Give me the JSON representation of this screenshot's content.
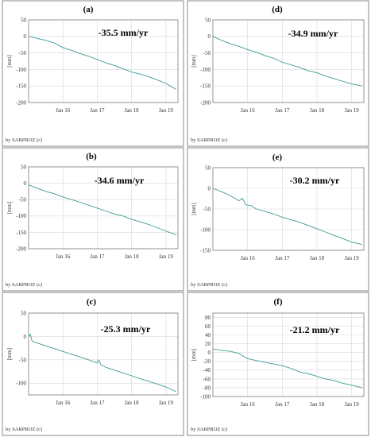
{
  "chart_data": [
    {
      "type": "line",
      "panel_label": "(a)",
      "annotation": "-35.5 mm/yr",
      "ylabel": "[mm]",
      "credit": "by SARPROZ (c)",
      "color": "#3a9a97",
      "ylim": [
        -200,
        50
      ],
      "yticks": [
        50,
        0,
        -50,
        -100,
        -150,
        -200
      ],
      "xticks": [
        {
          "t": 2016.0,
          "label": "Jan 16"
        },
        {
          "t": 2017.0,
          "label": "Jan 17"
        },
        {
          "t": 2018.0,
          "label": "Jan 18"
        },
        {
          "t": 2019.0,
          "label": "Jan 19"
        }
      ],
      "xlim": [
        2015.0,
        2019.35
      ],
      "series": [
        {
          "x": [
            2015.0,
            2015.1,
            2015.25,
            2015.5,
            2015.75,
            2016.0,
            2016.25,
            2016.5,
            2016.75,
            2017.0,
            2017.25,
            2017.5,
            2017.75,
            2018.0,
            2018.25,
            2018.5,
            2018.75,
            2019.0,
            2019.15,
            2019.3
          ],
          "y": [
            0,
            -2,
            -6,
            -12,
            -20,
            -34,
            -42,
            -52,
            -60,
            -70,
            -80,
            -88,
            -98,
            -108,
            -114,
            -122,
            -132,
            -142,
            -152,
            -160
          ]
        }
      ]
    },
    {
      "type": "line",
      "panel_label": "(d)",
      "annotation": "-34.9 mm/yr",
      "ylabel": "[mm]",
      "credit": "by SARPROZ (c)",
      "color": "#3a9a97",
      "ylim": [
        -200,
        50
      ],
      "yticks": [
        50,
        0,
        -50,
        -100,
        -150,
        -200
      ],
      "xticks": [
        {
          "t": 2016.0,
          "label": "Jan 16"
        },
        {
          "t": 2017.0,
          "label": "Jan 17"
        },
        {
          "t": 2018.0,
          "label": "Jan 18"
        },
        {
          "t": 2019.0,
          "label": "Jan 19"
        }
      ],
      "xlim": [
        2015.0,
        2019.35
      ],
      "series": [
        {
          "x": [
            2015.0,
            2015.25,
            2015.5,
            2015.75,
            2016.0,
            2016.25,
            2016.5,
            2016.75,
            2017.0,
            2017.25,
            2017.5,
            2017.75,
            2018.0,
            2018.25,
            2018.5,
            2018.75,
            2019.0,
            2019.3
          ],
          "y": [
            0,
            -12,
            -22,
            -30,
            -40,
            -48,
            -58,
            -66,
            -78,
            -86,
            -94,
            -104,
            -110,
            -120,
            -128,
            -136,
            -144,
            -150
          ]
        }
      ]
    },
    {
      "type": "line",
      "panel_label": "(b)",
      "annotation": "-34.6 mm/yr",
      "ylabel": "[mm]",
      "credit": "by SARPROZ (c)",
      "color": "#3a9a97",
      "ylim": [
        -200,
        50
      ],
      "yticks": [
        50,
        0,
        -50,
        -100,
        -150,
        -200
      ],
      "xticks": [
        {
          "t": 2016.0,
          "label": "Jan 16"
        },
        {
          "t": 2017.0,
          "label": "Jan 17"
        },
        {
          "t": 2018.0,
          "label": "Jan 18"
        },
        {
          "t": 2019.0,
          "label": "Jan 19"
        }
      ],
      "xlim": [
        2015.0,
        2019.35
      ],
      "series": [
        {
          "x": [
            2015.0,
            2015.25,
            2015.5,
            2015.75,
            2016.0,
            2016.25,
            2016.5,
            2016.75,
            2017.0,
            2017.25,
            2017.5,
            2017.75,
            2018.0,
            2018.25,
            2018.5,
            2018.75,
            2019.0,
            2019.3
          ],
          "y": [
            -5,
            -15,
            -25,
            -32,
            -42,
            -50,
            -58,
            -67,
            -76,
            -85,
            -94,
            -100,
            -110,
            -118,
            -126,
            -136,
            -146,
            -158
          ]
        }
      ]
    },
    {
      "type": "line",
      "panel_label": "(e)",
      "annotation": "-30.2 mm/yr",
      "ylabel": "[mm]",
      "credit": "by SARPROZ (c)",
      "color": "#3a9a97",
      "ylim": [
        -150,
        50
      ],
      "yticks": [
        50,
        0,
        -50,
        -100,
        -150
      ],
      "xticks": [
        {
          "t": 2016.0,
          "label": "Jan 16"
        },
        {
          "t": 2017.0,
          "label": "Jan 17"
        },
        {
          "t": 2018.0,
          "label": "Jan 18"
        },
        {
          "t": 2019.0,
          "label": "Jan 19"
        }
      ],
      "xlim": [
        2015.0,
        2019.35
      ],
      "series": [
        {
          "x": [
            2015.0,
            2015.25,
            2015.5,
            2015.75,
            2015.85,
            2015.95,
            2016.1,
            2016.25,
            2016.5,
            2016.75,
            2017.0,
            2017.25,
            2017.5,
            2017.75,
            2018.0,
            2018.25,
            2018.5,
            2018.75,
            2019.0,
            2019.3
          ],
          "y": [
            0,
            -8,
            -18,
            -30,
            -24,
            -40,
            -42,
            -50,
            -56,
            -62,
            -70,
            -76,
            -82,
            -90,
            -98,
            -106,
            -114,
            -122,
            -130,
            -136
          ]
        }
      ]
    },
    {
      "type": "line",
      "panel_label": "(c)",
      "annotation": "-25.3 mm/yr",
      "ylabel": "[mm]",
      "credit": "by SARPROZ (c)",
      "color": "#3a9a97",
      "ylim": [
        -125,
        50
      ],
      "yticks": [
        50,
        0,
        -50,
        -100
      ],
      "xticks": [
        {
          "t": 2016.0,
          "label": "Jan 16"
        },
        {
          "t": 2017.0,
          "label": "Jan 17"
        },
        {
          "t": 2018.0,
          "label": "Jan 18"
        },
        {
          "t": 2019.0,
          "label": "Jan 19"
        }
      ],
      "xlim": [
        2015.0,
        2019.35
      ],
      "series": [
        {
          "x": [
            2015.0,
            2015.05,
            2015.1,
            2015.25,
            2015.5,
            2015.75,
            2016.0,
            2016.25,
            2016.5,
            2016.75,
            2017.0,
            2017.05,
            2017.1,
            2017.25,
            2017.5,
            2017.75,
            2018.0,
            2018.25,
            2018.5,
            2018.75,
            2019.0,
            2019.3
          ],
          "y": [
            0,
            5,
            -10,
            -14,
            -20,
            -26,
            -32,
            -38,
            -44,
            -50,
            -57,
            -50,
            -60,
            -66,
            -72,
            -78,
            -84,
            -90,
            -96,
            -102,
            -108,
            -118
          ]
        }
      ]
    },
    {
      "type": "line",
      "panel_label": "(f)",
      "annotation": "-21.2 mm/yr",
      "ylabel": "[mm]",
      "credit": "by SARPROZ (c)",
      "color": "#3a9a97",
      "ylim": [
        -100,
        90
      ],
      "yticks": [
        80,
        60,
        40,
        20,
        0,
        -20,
        -40,
        -60,
        -80,
        -100
      ],
      "xticks": [
        {
          "t": 2016.0,
          "label": "Jan 16"
        },
        {
          "t": 2017.0,
          "label": "Jan 17"
        },
        {
          "t": 2018.0,
          "label": "Jan 18"
        },
        {
          "t": 2019.0,
          "label": "Jan 19"
        }
      ],
      "xlim": [
        2015.0,
        2019.35
      ],
      "series": [
        {
          "x": [
            2015.0,
            2015.25,
            2015.5,
            2015.75,
            2016.0,
            2016.25,
            2016.5,
            2016.75,
            2017.0,
            2017.25,
            2017.5,
            2017.75,
            2018.0,
            2018.25,
            2018.5,
            2018.75,
            2019.0,
            2019.3
          ],
          "y": [
            8,
            5,
            3,
            -2,
            -14,
            -18,
            -22,
            -26,
            -30,
            -36,
            -44,
            -48,
            -54,
            -60,
            -64,
            -70,
            -74,
            -80
          ]
        }
      ]
    }
  ]
}
